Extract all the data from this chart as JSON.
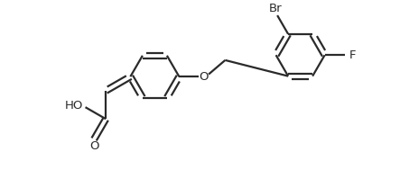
{
  "background_color": "#ffffff",
  "line_color": "#2a2a2a",
  "line_width": 1.6,
  "font_size": 9.5,
  "figsize": [
    4.43,
    1.89
  ],
  "dpi": 100,
  "xlim": [
    0,
    10
  ],
  "ylim": [
    0,
    4.27
  ]
}
